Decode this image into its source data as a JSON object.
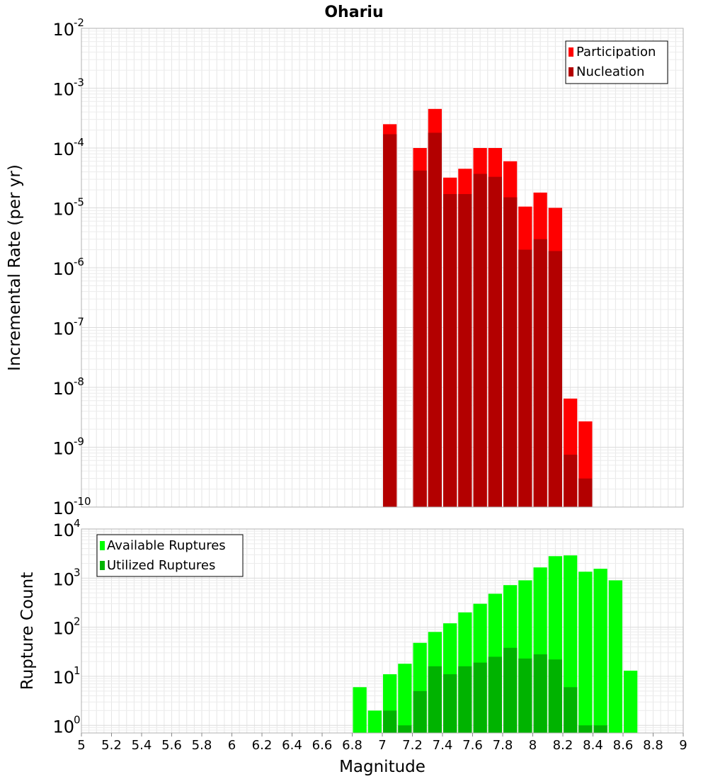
{
  "figure": {
    "title": "Ohariu",
    "xlabel": "Magnitude",
    "xticks": [
      "5",
      "5.2",
      "5.4",
      "5.6",
      "5.8",
      "6",
      "6.2",
      "6.4",
      "6.6",
      "6.8",
      "7",
      "7.2",
      "7.4",
      "7.6",
      "7.8",
      "8",
      "8.2",
      "8.4",
      "8.6",
      "8.8",
      "9"
    ]
  },
  "colors": {
    "participation": "#ff0000",
    "nucleation": "#b30000",
    "available": "#00ff00",
    "utilized": "#00b300",
    "grid": "#e6e6e6",
    "frame": "#b0b0b0"
  },
  "chart_data": [
    {
      "type": "bar",
      "title": "Ohariu",
      "xlabel": "",
      "ylabel": "Incremental Rate (per yr)",
      "xlim": [
        5,
        9
      ],
      "ylim": [
        1e-10,
        0.01
      ],
      "yscale": "log",
      "yticks": [
        {
          "base": "10",
          "exp": "-2"
        },
        {
          "base": "10",
          "exp": "-3"
        },
        {
          "base": "10",
          "exp": "-4"
        },
        {
          "base": "10",
          "exp": "-5"
        },
        {
          "base": "10",
          "exp": "-6"
        },
        {
          "base": "10",
          "exp": "-7"
        },
        {
          "base": "10",
          "exp": "-8"
        },
        {
          "base": "10",
          "exp": "-9"
        },
        {
          "base": "10",
          "exp": "-10"
        }
      ],
      "legend": {
        "position": "top-right",
        "entries": [
          "Participation",
          "Nucleation"
        ]
      },
      "grid": true,
      "x": [
        7.05,
        7.25,
        7.35,
        7.45,
        7.55,
        7.65,
        7.75,
        7.85,
        7.95,
        8.05,
        8.15,
        8.25,
        8.35
      ],
      "series": [
        {
          "name": "Participation",
          "values": [
            0.00025,
            0.0001,
            0.00045,
            3.2e-05,
            4.5e-05,
            0.0001,
            0.0001,
            6e-05,
            1.05e-05,
            1.8e-05,
            1e-05,
            6.5e-09,
            2.7e-09
          ]
        },
        {
          "name": "Nucleation",
          "values": [
            0.00017,
            4.2e-05,
            0.00018,
            1.7e-05,
            1.7e-05,
            3.7e-05,
            3.3e-05,
            1.5e-05,
            2e-06,
            3e-06,
            1.9e-06,
            7.5e-10,
            3e-10
          ]
        }
      ]
    },
    {
      "type": "bar",
      "title": "",
      "xlabel": "Magnitude",
      "ylabel": "Rupture Count",
      "xlim": [
        5,
        9
      ],
      "ylim": [
        0.7,
        10000
      ],
      "yscale": "log",
      "yticks": [
        {
          "base": "10",
          "exp": "4"
        },
        {
          "base": "10",
          "exp": "3"
        },
        {
          "base": "10",
          "exp": "2"
        },
        {
          "base": "10",
          "exp": "1"
        },
        {
          "base": "10",
          "exp": "0"
        }
      ],
      "legend": {
        "position": "top-left",
        "entries": [
          "Available Ruptures",
          "Utilized Ruptures"
        ]
      },
      "grid": true,
      "x": [
        6.85,
        6.95,
        7.05,
        7.15,
        7.25,
        7.35,
        7.45,
        7.55,
        7.65,
        7.75,
        7.85,
        7.95,
        8.05,
        8.15,
        8.25,
        8.35,
        8.45,
        8.55,
        8.65
      ],
      "series": [
        {
          "name": "Available Ruptures",
          "values": [
            6,
            2,
            11,
            18,
            48,
            80,
            120,
            200,
            300,
            480,
            720,
            900,
            1650,
            2800,
            2900,
            1350,
            1550,
            900,
            13
          ]
        },
        {
          "name": "Utilized Ruptures",
          "values": [
            0,
            0,
            2,
            1,
            5,
            16,
            11,
            16,
            19,
            25,
            38,
            23,
            28,
            22,
            6,
            1,
            1,
            0,
            0
          ]
        }
      ]
    }
  ]
}
